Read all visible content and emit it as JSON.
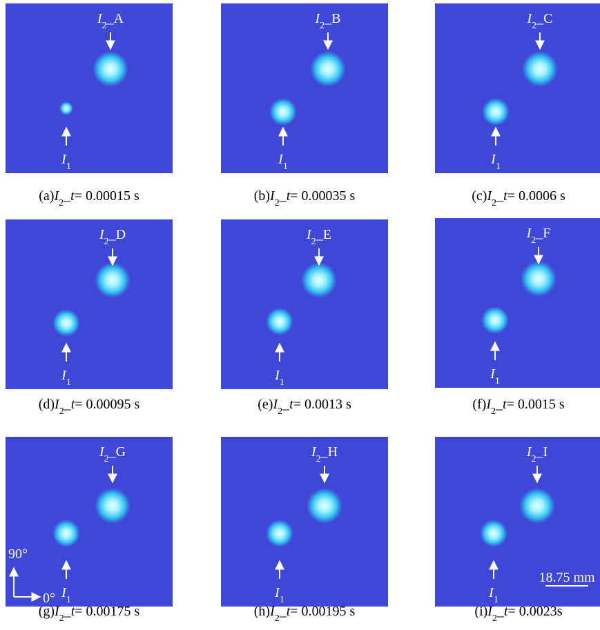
{
  "panels": [
    {
      "top_label": [
        "I",
        "2",
        "_A"
      ],
      "bottom_label": [
        "I",
        "1"
      ],
      "caption": [
        "(a)",
        "I",
        "2",
        "_",
        "t",
        "= 0.00015 s"
      ]
    },
    {
      "top_label": [
        "I",
        "2",
        "_B"
      ],
      "bottom_label": [
        "I",
        "1"
      ],
      "caption": [
        "(b)",
        "I",
        "2",
        "_",
        "t",
        "= 0.00035 s"
      ]
    },
    {
      "top_label": [
        "I",
        "2",
        "_C"
      ],
      "bottom_label": [
        "I",
        "1"
      ],
      "caption": [
        "(c)",
        "I",
        "2",
        "_",
        "t",
        "= 0.0006 s"
      ]
    },
    {
      "top_label": [
        "I",
        "2",
        "_D"
      ],
      "bottom_label": [
        "I",
        "1"
      ],
      "caption": [
        "(d)",
        "I",
        "2",
        "_",
        "t",
        "= 0.00095 s"
      ]
    },
    {
      "top_label": [
        "I",
        "2",
        "_E"
      ],
      "bottom_label": [
        "I",
        "1"
      ],
      "caption": [
        "(e)",
        "I",
        "2",
        "_",
        "t",
        "= 0.0013 s"
      ]
    },
    {
      "top_label": [
        "I",
        "2",
        "_F"
      ],
      "bottom_label": [
        "I",
        "1"
      ],
      "caption": [
        "(f)",
        "I",
        "2",
        "_",
        "t",
        "= 0.0015 s"
      ]
    },
    {
      "top_label": [
        "I",
        "2",
        "_G"
      ],
      "bottom_label": [
        "I",
        "1"
      ],
      "caption": [
        "(g)",
        "I",
        "2",
        "_",
        "t",
        "= 0.00175 s"
      ],
      "axis_labels": [
        "90°",
        "0°"
      ]
    },
    {
      "top_label": [
        "I",
        "2",
        "_H"
      ],
      "bottom_label": [
        "I",
        "1"
      ],
      "caption": [
        "(h)",
        "I",
        "2",
        "_",
        "t",
        "= 0.00195 s"
      ]
    },
    {
      "top_label": [
        "I",
        "2",
        "_I"
      ],
      "bottom_label": [
        "I",
        "1"
      ],
      "caption": [
        "(i)",
        "I",
        "2",
        "_",
        "t",
        "= 0.0023s"
      ],
      "scale_bar": "18.75 mm"
    }
  ]
}
